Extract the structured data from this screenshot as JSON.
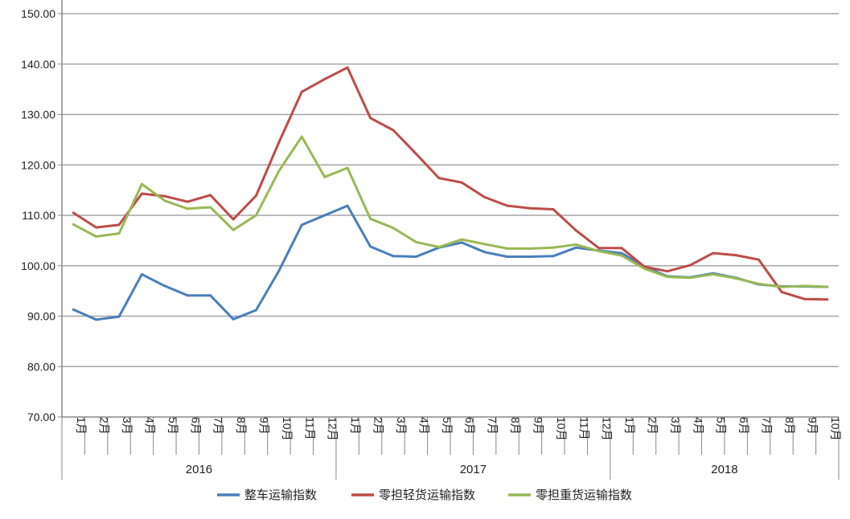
{
  "chart_data": {
    "type": "line",
    "title": "",
    "xlabel": "",
    "ylabel": "",
    "ylim": [
      70,
      150
    ],
    "yticks": [
      "70.00",
      "80.00",
      "90.00",
      "100.00",
      "110.00",
      "120.00",
      "130.00",
      "140.00",
      "150.00"
    ],
    "grid": true,
    "legend_position": "bottom",
    "years": [
      {
        "label": "2016",
        "months": [
          "1月",
          "2月",
          "3月",
          "4月",
          "5月",
          "6月",
          "7月",
          "8月",
          "9月",
          "10月",
          "11月",
          "12月"
        ]
      },
      {
        "label": "2017",
        "months": [
          "1月",
          "2月",
          "3月",
          "4月",
          "5月",
          "6月",
          "7月",
          "8月",
          "9月",
          "10月",
          "11月",
          "12月"
        ]
      },
      {
        "label": "2018",
        "months": [
          "1月",
          "2月",
          "3月",
          "4月",
          "5月",
          "6月",
          "7月",
          "8月",
          "9月",
          "10月"
        ]
      }
    ],
    "series": [
      {
        "name": "整车运输指数",
        "color": "#4a7ebb",
        "values": [
          91.3,
          89.3,
          89.9,
          98.3,
          96.0,
          94.1,
          94.1,
          89.4,
          91.2,
          99.0,
          108.1,
          110.0,
          111.9,
          103.8,
          101.9,
          101.8,
          103.6,
          104.6,
          102.7,
          101.8,
          101.8,
          101.9,
          103.6,
          103.0,
          102.5,
          99.8,
          97.9,
          97.7,
          98.5,
          97.6,
          96.3,
          95.9,
          95.9,
          95.8
        ]
      },
      {
        "name": "零担轻货运输指数",
        "color": "#be4b48",
        "values": [
          110.5,
          107.6,
          108.1,
          114.3,
          113.8,
          112.7,
          114.0,
          109.2,
          113.9,
          124.5,
          134.5,
          137.0,
          139.3,
          129.3,
          126.9,
          122.2,
          117.4,
          116.5,
          113.6,
          111.9,
          111.4,
          111.2,
          107.0,
          103.5,
          103.5,
          99.8,
          98.9,
          100.1,
          102.5,
          102.1,
          101.2,
          94.8,
          93.4,
          93.3
        ]
      },
      {
        "name": "零担重货运输指数",
        "color": "#98b954",
        "values": [
          108.2,
          105.8,
          106.4,
          116.2,
          112.9,
          111.3,
          111.6,
          107.1,
          110.0,
          118.8,
          125.6,
          117.6,
          119.4,
          109.3,
          107.5,
          104.7,
          103.7,
          105.2,
          104.3,
          103.4,
          103.4,
          103.6,
          104.2,
          102.9,
          102.0,
          99.4,
          97.8,
          97.6,
          98.3,
          97.5,
          96.4,
          95.8,
          96.0,
          95.8
        ]
      }
    ]
  }
}
